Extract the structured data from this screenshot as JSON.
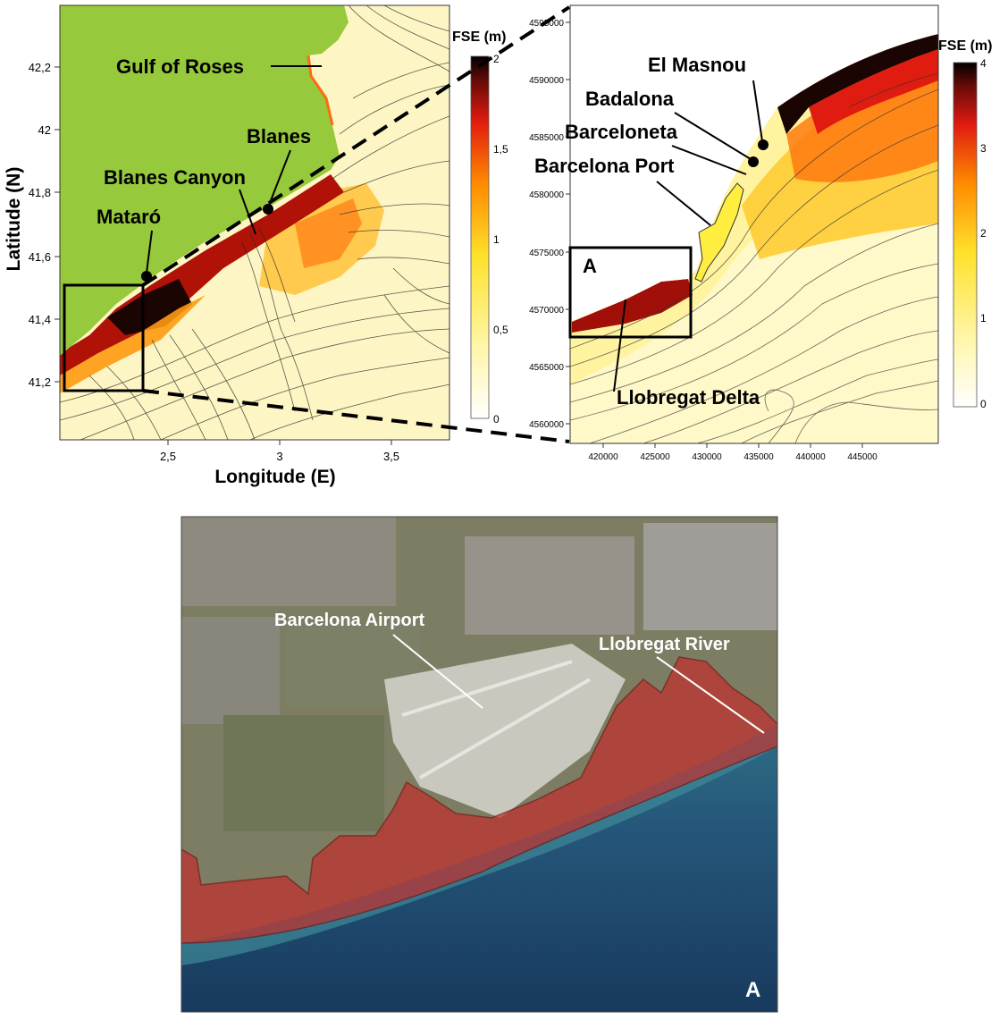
{
  "left_map": {
    "labels": {
      "gulf": "Gulf of Roses",
      "blanes": "Blanes",
      "canyon": "Blanes Canyon",
      "mataro": "Mataró"
    },
    "xlabel": "Longitude (E)",
    "ylabel": "Latitude (N)",
    "x_ticks": [
      "2,5",
      "3",
      "3,5"
    ],
    "y_ticks": [
      "42,2",
      "42",
      "41,8",
      "41,6",
      "41,4",
      "41,2"
    ],
    "colorbar": {
      "title": "FSE (m)",
      "ticks": [
        "2",
        "1,5",
        "1",
        "0,5",
        "0"
      ],
      "range": [
        0,
        2
      ]
    },
    "land_color": "#97c93d"
  },
  "right_map": {
    "labels": {
      "el_masnou": "El Masnou",
      "badalona": "Badalona",
      "barceloneta": "Barceloneta",
      "barcelona_port": "Barcelona Port",
      "llobregat_delta": "Llobregat Delta",
      "box": "A"
    },
    "x_ticks": [
      "420000",
      "425000",
      "430000",
      "435000",
      "440000",
      "445000"
    ],
    "y_ticks": [
      "4595000",
      "4590000",
      "4585000",
      "4580000",
      "4575000",
      "4570000",
      "4565000",
      "4560000"
    ],
    "colorbar": {
      "title": "FSE (m)",
      "ticks": [
        "4",
        "3",
        "2",
        "1",
        "0"
      ],
      "range": [
        0,
        4
      ]
    }
  },
  "satellite": {
    "labels": {
      "airport": "Barcelona Airport",
      "river": "Llobregat River",
      "panel": "A"
    },
    "flood_color": "#c0302e"
  }
}
